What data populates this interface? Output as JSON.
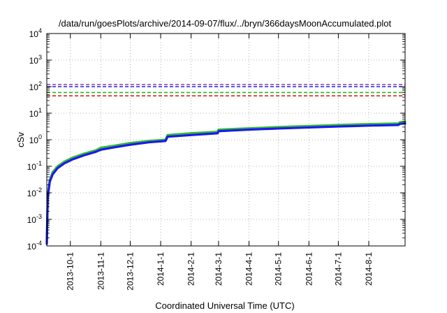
{
  "chart_data": {
    "type": "line",
    "title": "/data/run/goesPlots/archive/2014-09-07/flux/../bryn/366daysMoonAccumulated.plot",
    "xlabel": "Coordinated Universal Time (UTC)",
    "ylabel": "cSv",
    "yscale": "log",
    "ylim": [
      0.0001,
      10000
    ],
    "y_ticks": [
      {
        "base": "10",
        "exp": "-4",
        "value": 0.0001
      },
      {
        "base": "10",
        "exp": "-3",
        "value": 0.001
      },
      {
        "base": "10",
        "exp": "-2",
        "value": 0.01
      },
      {
        "base": "10",
        "exp": "-1",
        "value": 0.1
      },
      {
        "base": "10",
        "exp": "0",
        "value": 1
      },
      {
        "base": "10",
        "exp": "1",
        "value": 10
      },
      {
        "base": "10",
        "exp": "2",
        "value": 100
      },
      {
        "base": "10",
        "exp": "3",
        "value": 1000
      },
      {
        "base": "10",
        "exp": "4",
        "value": 10000
      }
    ],
    "xlim": [
      "2013-09-07",
      "2014-09-07"
    ],
    "x_ticks": [
      "2013-10-1",
      "2013-11-1",
      "2013-12-1",
      "2014-1-1",
      "2014-2-1",
      "2014-3-1",
      "2014-4-1",
      "2014-5-1",
      "2014-6-1",
      "2014-7-1",
      "2014-8-1"
    ],
    "grid": true,
    "reference_lines": [
      {
        "y": 120,
        "color": "#7f3fbf",
        "style": "dashed"
      },
      {
        "y": 100,
        "color": "#2222dd",
        "style": "dashed"
      },
      {
        "y": 60,
        "color": "#22bb22",
        "style": "dashed"
      },
      {
        "y": 45,
        "color": "#dd2222",
        "style": "dashed"
      }
    ],
    "series": [
      {
        "color": "#33bb33",
        "points": [
          [
            "2013-09-07",
            0.00015
          ],
          [
            "2013-09-08",
            0.008
          ],
          [
            "2013-09-10",
            0.03
          ],
          [
            "2013-09-13",
            0.06
          ],
          [
            "2013-09-18",
            0.1
          ],
          [
            "2013-09-25",
            0.15
          ],
          [
            "2013-10-03",
            0.21
          ],
          [
            "2013-10-15",
            0.3
          ],
          [
            "2013-10-27",
            0.4
          ],
          [
            "2013-11-01",
            0.5
          ],
          [
            "2013-11-15",
            0.6
          ],
          [
            "2013-12-01",
            0.75
          ],
          [
            "2013-12-20",
            0.9
          ],
          [
            "2014-01-06",
            1.0
          ],
          [
            "2014-01-08",
            1.5
          ],
          [
            "2014-02-01",
            1.75
          ],
          [
            "2014-02-28",
            2.0
          ],
          [
            "2014-03-01",
            2.4
          ],
          [
            "2014-04-01",
            2.7
          ],
          [
            "2014-05-01",
            3.0
          ],
          [
            "2014-06-01",
            3.3
          ],
          [
            "2014-07-01",
            3.6
          ],
          [
            "2014-08-01",
            3.9
          ],
          [
            "2014-08-31",
            4.1
          ],
          [
            "2014-09-02",
            4.6
          ],
          [
            "2014-09-07",
            4.8
          ]
        ]
      },
      {
        "color": "#1a1aee",
        "points": [
          [
            "2013-09-07",
            0.00012
          ],
          [
            "2013-09-08",
            0.007
          ],
          [
            "2013-09-10",
            0.026
          ],
          [
            "2013-09-13",
            0.05
          ],
          [
            "2013-09-18",
            0.085
          ],
          [
            "2013-09-25",
            0.13
          ],
          [
            "2013-10-03",
            0.18
          ],
          [
            "2013-10-15",
            0.26
          ],
          [
            "2013-10-27",
            0.35
          ],
          [
            "2013-11-01",
            0.42
          ],
          [
            "2013-11-15",
            0.52
          ],
          [
            "2013-12-01",
            0.65
          ],
          [
            "2013-12-20",
            0.8
          ],
          [
            "2014-01-06",
            0.9
          ],
          [
            "2014-01-08",
            1.3
          ],
          [
            "2014-02-01",
            1.5
          ],
          [
            "2014-02-28",
            1.75
          ],
          [
            "2014-03-01",
            2.1
          ],
          [
            "2014-04-01",
            2.4
          ],
          [
            "2014-05-01",
            2.65
          ],
          [
            "2014-06-01",
            2.9
          ],
          [
            "2014-07-01",
            3.15
          ],
          [
            "2014-08-01",
            3.4
          ],
          [
            "2014-08-31",
            3.6
          ],
          [
            "2014-09-02",
            4.0
          ],
          [
            "2014-09-07",
            4.1
          ]
        ]
      }
    ]
  }
}
